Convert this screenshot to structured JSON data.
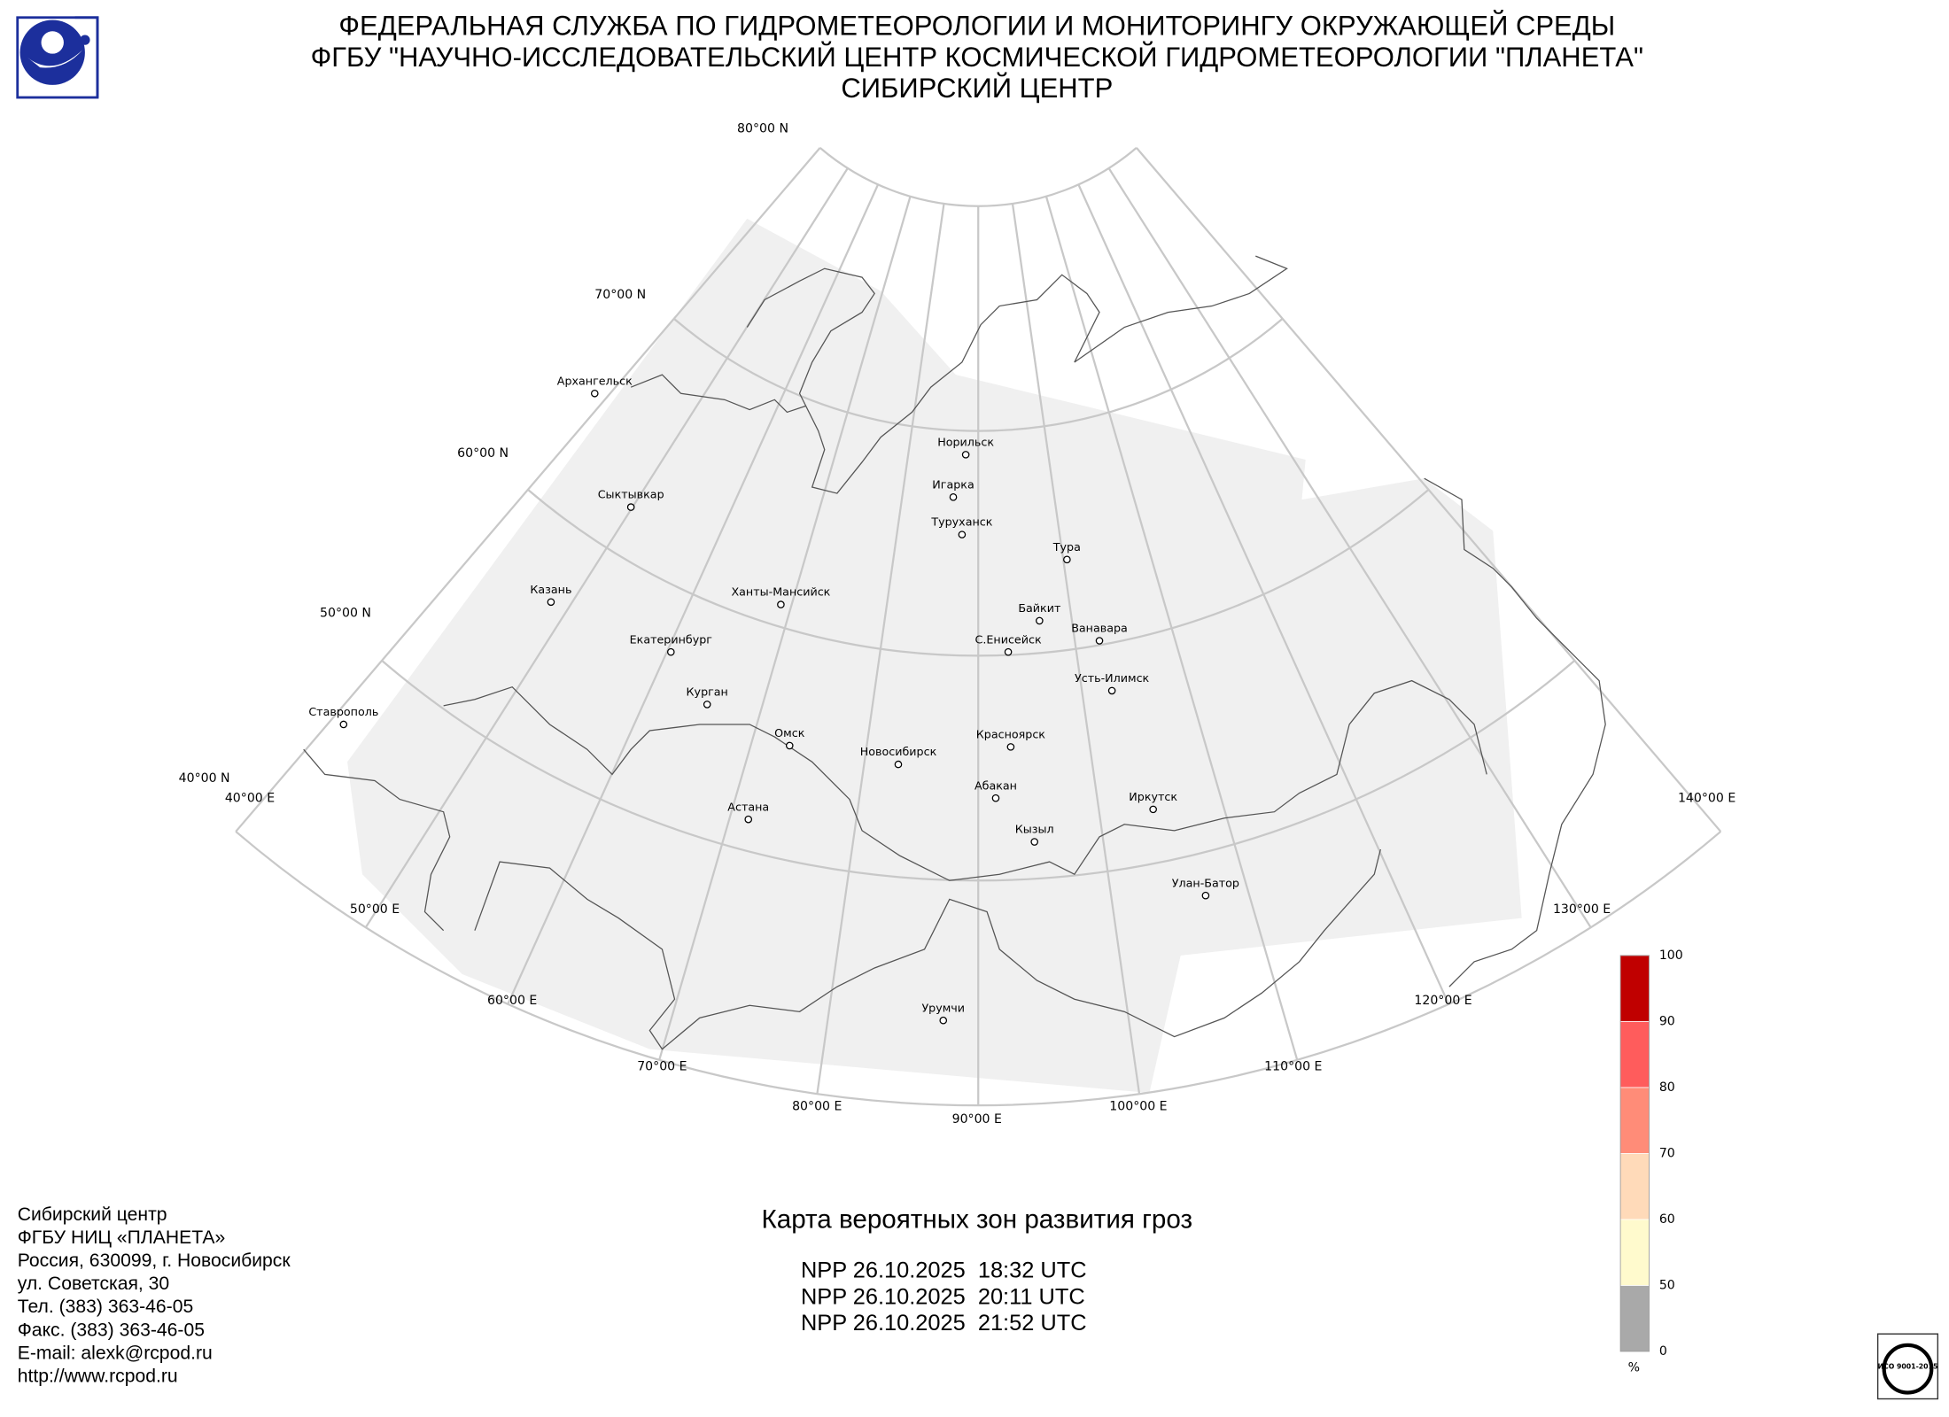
{
  "header": {
    "lines": [
      "ФЕДЕРАЛЬНАЯ СЛУЖБА ПО ГИДРОМЕТЕОРОЛОГИИ И МОНИТОРИНГУ ОКРУЖАЮЩЕЙ СРЕДЫ",
      "ФГБУ \"НАУЧНО-ИССЛЕДОВАТЕЛЬСКИЙ ЦЕНТР КОСМИЧЕСКОЙ ГИДРОМЕТЕОРОЛОГИИ \"ПЛАНЕТА\"",
      "СИБИРСКИЙ ЦЕНТР"
    ]
  },
  "graticule": {
    "parallels": [
      "80°00 N",
      "70°00 N",
      "60°00 N",
      "50°00 N",
      "40°00 N"
    ],
    "meridians": [
      "40°00 E",
      "50°00 E",
      "60°00 E",
      "70°00 E",
      "80°00 E",
      "90°00 E",
      "100°00 E",
      "110°00 E",
      "120°00 E",
      "130°00 E",
      "140°00 E"
    ]
  },
  "cities": [
    "Архангельск",
    "Сыктывкар",
    "Казань",
    "Екатеринбург",
    "Курган",
    "Ханты-Мансийск",
    "Омск",
    "Новосибирск",
    "Астана",
    "Норильск",
    "Игарка",
    "Туруханск",
    "Тура",
    "Байкит",
    "С.Енисейск",
    "Ванавара",
    "Усть-Илимск",
    "Красноярск",
    "Абакан",
    "Кызыл",
    "Иркутск",
    "Улан-Батор",
    "Урумчи",
    "Ставрополь"
  ],
  "legend": {
    "ticks": [
      0,
      50,
      60,
      70,
      80,
      90,
      100
    ],
    "colors": [
      "#a9a9a9",
      "#fffacd",
      "#ffdab9",
      "#ff8c78",
      "#ff5c5c",
      "#c00000"
    ],
    "unit": "%"
  },
  "product": {
    "title": "Карта вероятных зон развития гроз",
    "passes": [
      "NPP 26.10.2025  18:32 UTC",
      "NPP 26.10.2025  20:11 UTC",
      "NPP 26.10.2025  21:52 UTC"
    ]
  },
  "contacts": [
    "Сибирский центр",
    "ФГБУ НИЦ «ПЛАНЕТА»",
    "Россия, 630099, г. Новосибирск",
    "ул. Советская, 30",
    "Тел. (383) 363-46-05",
    "Факс. (383) 363-46-05",
    "E-mail: alexk@rcpod.ru",
    "http://www.rcpod.ru"
  ],
  "iso": "ИСО 9001-2015"
}
